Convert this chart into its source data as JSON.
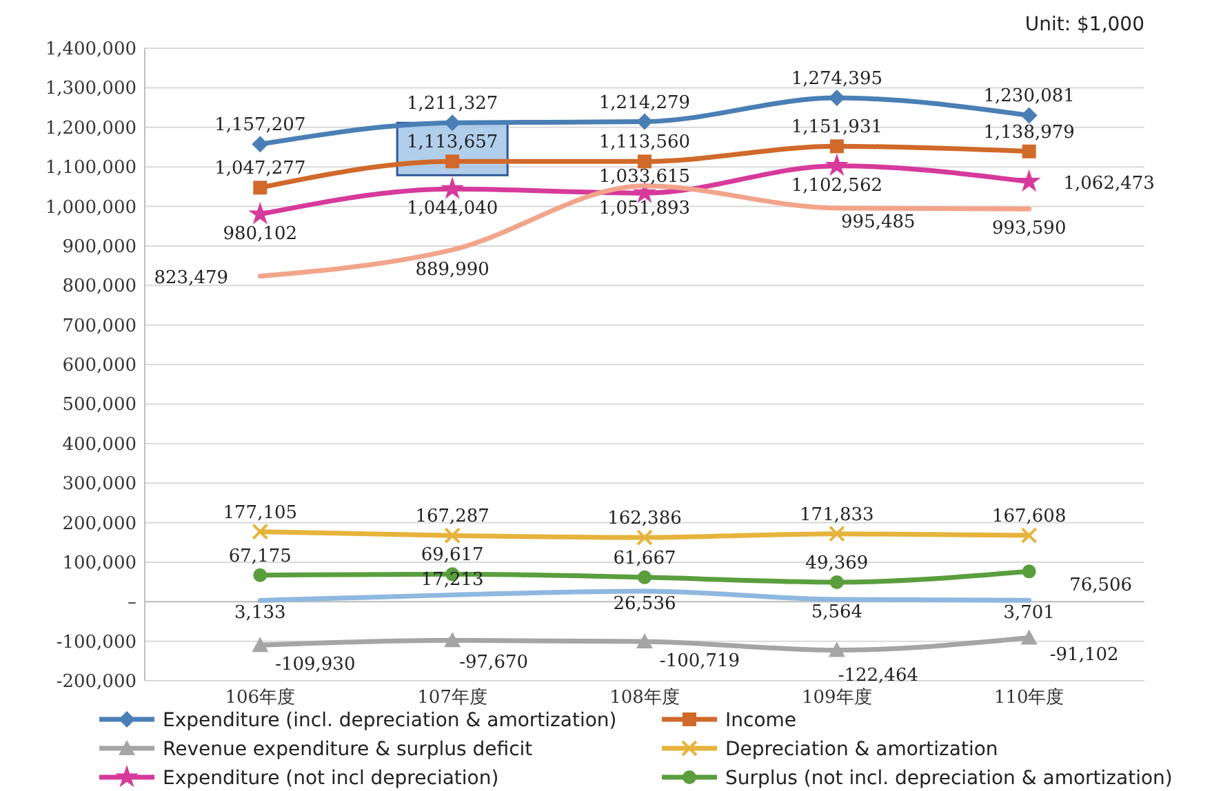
{
  "chart_data": {
    "type": "line",
    "annotations": [
      "Unit: $1,000"
    ],
    "categories": [
      "106年度",
      "107年度",
      "108年度",
      "109年度",
      "110年度"
    ],
    "series": [
      {
        "name": "Expenditure (incl. depreciation & amortization)",
        "color": "#4a7fb5",
        "marker": "diamond",
        "values": [
          1157207,
          1211327,
          1214279,
          1274395,
          1230081
        ],
        "value_labels": [
          "1,157,207",
          "1,211,327",
          "1,214,279",
          "1,274,395",
          "1,230,081"
        ]
      },
      {
        "name": "Income",
        "color": "#d0692a",
        "marker": "square",
        "values": [
          1047277,
          1113657,
          1113560,
          1151931,
          1138979
        ],
        "value_labels": [
          "1,047,277",
          "1,113,657",
          "1,113,560",
          "1,151,931",
          "1,138,979"
        ]
      },
      {
        "name": "Revenue expenditure & surplus deficit",
        "color": "#a5a5a5",
        "marker": "triangle",
        "values": [
          -109930,
          -97670,
          -100719,
          -122464,
          -91102
        ],
        "value_labels": [
          "-109,930",
          "-97,670",
          "-100,719",
          "-122,464",
          "-91,102"
        ]
      },
      {
        "name": "Depreciation & amortization",
        "color": "#e6b33c",
        "marker": "cross",
        "values": [
          177105,
          167287,
          162386,
          171833,
          167608
        ],
        "value_labels": [
          "177,105",
          "167,287",
          "162,386",
          "171,833",
          "167,608"
        ]
      },
      {
        "name": "Expenditure (not incl depreciation)",
        "color": "#d63a9b",
        "marker": "star",
        "values": [
          980102,
          1044040,
          1033615,
          1102562,
          1062473
        ],
        "value_labels": [
          "980,102",
          "1,044,040",
          "1,033,615",
          "1,102,562",
          "1,062,473"
        ]
      },
      {
        "name": "Surplus (not incl. depreciation & amortization)",
        "color": "#5a9e3e",
        "marker": "circle",
        "values": [
          67175,
          69617,
          61667,
          49369,
          76506
        ],
        "value_labels": [
          "67,175",
          "69,617",
          "61,667",
          "49,369",
          "76,506"
        ]
      },
      {
        "color": "#8fb8e0",
        "marker": "none",
        "values": [
          3133,
          17213,
          26536,
          5564,
          3701
        ],
        "value_labels": [
          "3,133",
          "17,213",
          "26,536",
          "5,564",
          "3,701"
        ]
      },
      {
        "color": "#f2a48a",
        "marker": "none",
        "values": [
          823479,
          889990,
          1051893,
          995485,
          993590
        ],
        "value_labels": [
          "823,479",
          "889,990",
          "1,051,893",
          "995,485",
          "993,590"
        ]
      }
    ],
    "ylim": [
      -200000,
      1400000
    ],
    "yticks": [
      {
        "value": -200000,
        "label": "-200,000"
      },
      {
        "value": -100000,
        "label": "-100,000"
      },
      {
        "value": 0,
        "label": "–"
      },
      {
        "value": 100000,
        "label": "100,000"
      },
      {
        "value": 200000,
        "label": "200,000"
      },
      {
        "value": 300000,
        "label": "300,000"
      },
      {
        "value": 400000,
        "label": "400,000"
      },
      {
        "value": 500000,
        "label": "500,000"
      },
      {
        "value": 600000,
        "label": "600,000"
      },
      {
        "value": 700000,
        "label": "700,000"
      },
      {
        "value": 800000,
        "label": "800,000"
      },
      {
        "value": 900000,
        "label": "900,000"
      },
      {
        "value": 1000000,
        "label": "1,000,000"
      },
      {
        "value": 1100000,
        "label": "1,100,000"
      },
      {
        "value": 1200000,
        "label": "1,200,000"
      },
      {
        "value": 1300000,
        "label": "1,300,000"
      },
      {
        "value": 1400000,
        "label": "1,400,000"
      }
    ],
    "grid": "y",
    "legend": "bottom"
  }
}
